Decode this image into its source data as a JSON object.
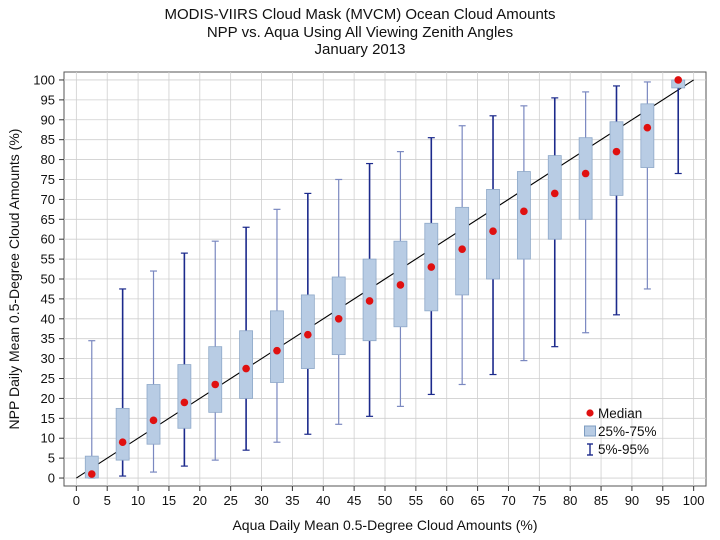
{
  "title_lines": [
    "MODIS-VIIRS Cloud Mask (MVCM) Ocean Cloud Amounts",
    "NPP vs. Aqua Using All Viewing Zenith Angles",
    "January 2013"
  ],
  "chart_data": {
    "type": "box",
    "xlabel": "Aqua Daily Mean 0.5-Degree Cloud Amounts (%)",
    "ylabel": "NPP Daily Mean 0.5-Degree Cloud Amounts (%)",
    "xlim": [
      -2,
      102
    ],
    "ylim": [
      -2,
      102
    ],
    "xticks": [
      0,
      5,
      10,
      15,
      20,
      25,
      30,
      35,
      40,
      45,
      50,
      55,
      60,
      65,
      70,
      75,
      80,
      85,
      90,
      95,
      100
    ],
    "yticks": [
      0,
      5,
      10,
      15,
      20,
      25,
      30,
      35,
      40,
      45,
      50,
      55,
      60,
      65,
      70,
      75,
      80,
      85,
      90,
      95,
      100
    ],
    "grid": true,
    "reference_line": {
      "from": [
        0,
        0
      ],
      "to": [
        100,
        100
      ],
      "color": "#000000"
    },
    "boxes": [
      {
        "x": 2.5,
        "p5": 0,
        "q1": 0,
        "median": 1,
        "q3": 5.5,
        "p95": 34.5
      },
      {
        "x": 7.5,
        "p5": 0.5,
        "q1": 4.5,
        "median": 9,
        "q3": 17.5,
        "p95": 47.5
      },
      {
        "x": 12.5,
        "p5": 1.5,
        "q1": 8.5,
        "median": 14.5,
        "q3": 23.5,
        "p95": 52
      },
      {
        "x": 17.5,
        "p5": 3,
        "q1": 12.5,
        "median": 19,
        "q3": 28.5,
        "p95": 56.5
      },
      {
        "x": 22.5,
        "p5": 4.5,
        "q1": 16.5,
        "median": 23.5,
        "q3": 33,
        "p95": 59.5
      },
      {
        "x": 27.5,
        "p5": 7,
        "q1": 20,
        "median": 27.5,
        "q3": 37,
        "p95": 63
      },
      {
        "x": 32.5,
        "p5": 9,
        "q1": 24,
        "median": 32,
        "q3": 42,
        "p95": 67.5
      },
      {
        "x": 37.5,
        "p5": 11,
        "q1": 27.5,
        "median": 36,
        "q3": 46,
        "p95": 71.5
      },
      {
        "x": 42.5,
        "p5": 13.5,
        "q1": 31,
        "median": 40,
        "q3": 50.5,
        "p95": 75
      },
      {
        "x": 47.5,
        "p5": 15.5,
        "q1": 34.5,
        "median": 44.5,
        "q3": 55,
        "p95": 79
      },
      {
        "x": 52.5,
        "p5": 18,
        "q1": 38,
        "median": 48.5,
        "q3": 59.5,
        "p95": 82
      },
      {
        "x": 57.5,
        "p5": 21,
        "q1": 42,
        "median": 53,
        "q3": 64,
        "p95": 85.5
      },
      {
        "x": 62.5,
        "p5": 23.5,
        "q1": 46,
        "median": 57.5,
        "q3": 68,
        "p95": 88.5
      },
      {
        "x": 67.5,
        "p5": 26,
        "q1": 50,
        "median": 62,
        "q3": 72.5,
        "p95": 91
      },
      {
        "x": 72.5,
        "p5": 29.5,
        "q1": 55,
        "median": 67,
        "q3": 77,
        "p95": 93.5
      },
      {
        "x": 77.5,
        "p5": 33,
        "q1": 60,
        "median": 71.5,
        "q3": 81,
        "p95": 95.5
      },
      {
        "x": 82.5,
        "p5": 36.5,
        "q1": 65,
        "median": 76.5,
        "q3": 85.5,
        "p95": 97
      },
      {
        "x": 87.5,
        "p5": 41,
        "q1": 71,
        "median": 82,
        "q3": 89.5,
        "p95": 98.5
      },
      {
        "x": 92.5,
        "p5": 47.5,
        "q1": 78,
        "median": 88,
        "q3": 94,
        "p95": 99.5
      },
      {
        "x": 97.5,
        "p5": 76.5,
        "q1": 98,
        "median": 100,
        "q3": 100,
        "p95": 100
      }
    ],
    "legend": {
      "placement": "bottom-right",
      "entries": [
        {
          "label": "Median",
          "marker": "dot"
        },
        {
          "label": "25%-75%",
          "marker": "box"
        },
        {
          "label": "5%-95%",
          "marker": "whisker"
        }
      ]
    },
    "colors": {
      "median": "#e01010",
      "box_fill": "#b8cce4",
      "box_stroke": "#8ea8c8",
      "whisker_dark": "#1c2a8c",
      "whisker_light": "#7a88c0",
      "grid": "#cfcfcf"
    }
  }
}
